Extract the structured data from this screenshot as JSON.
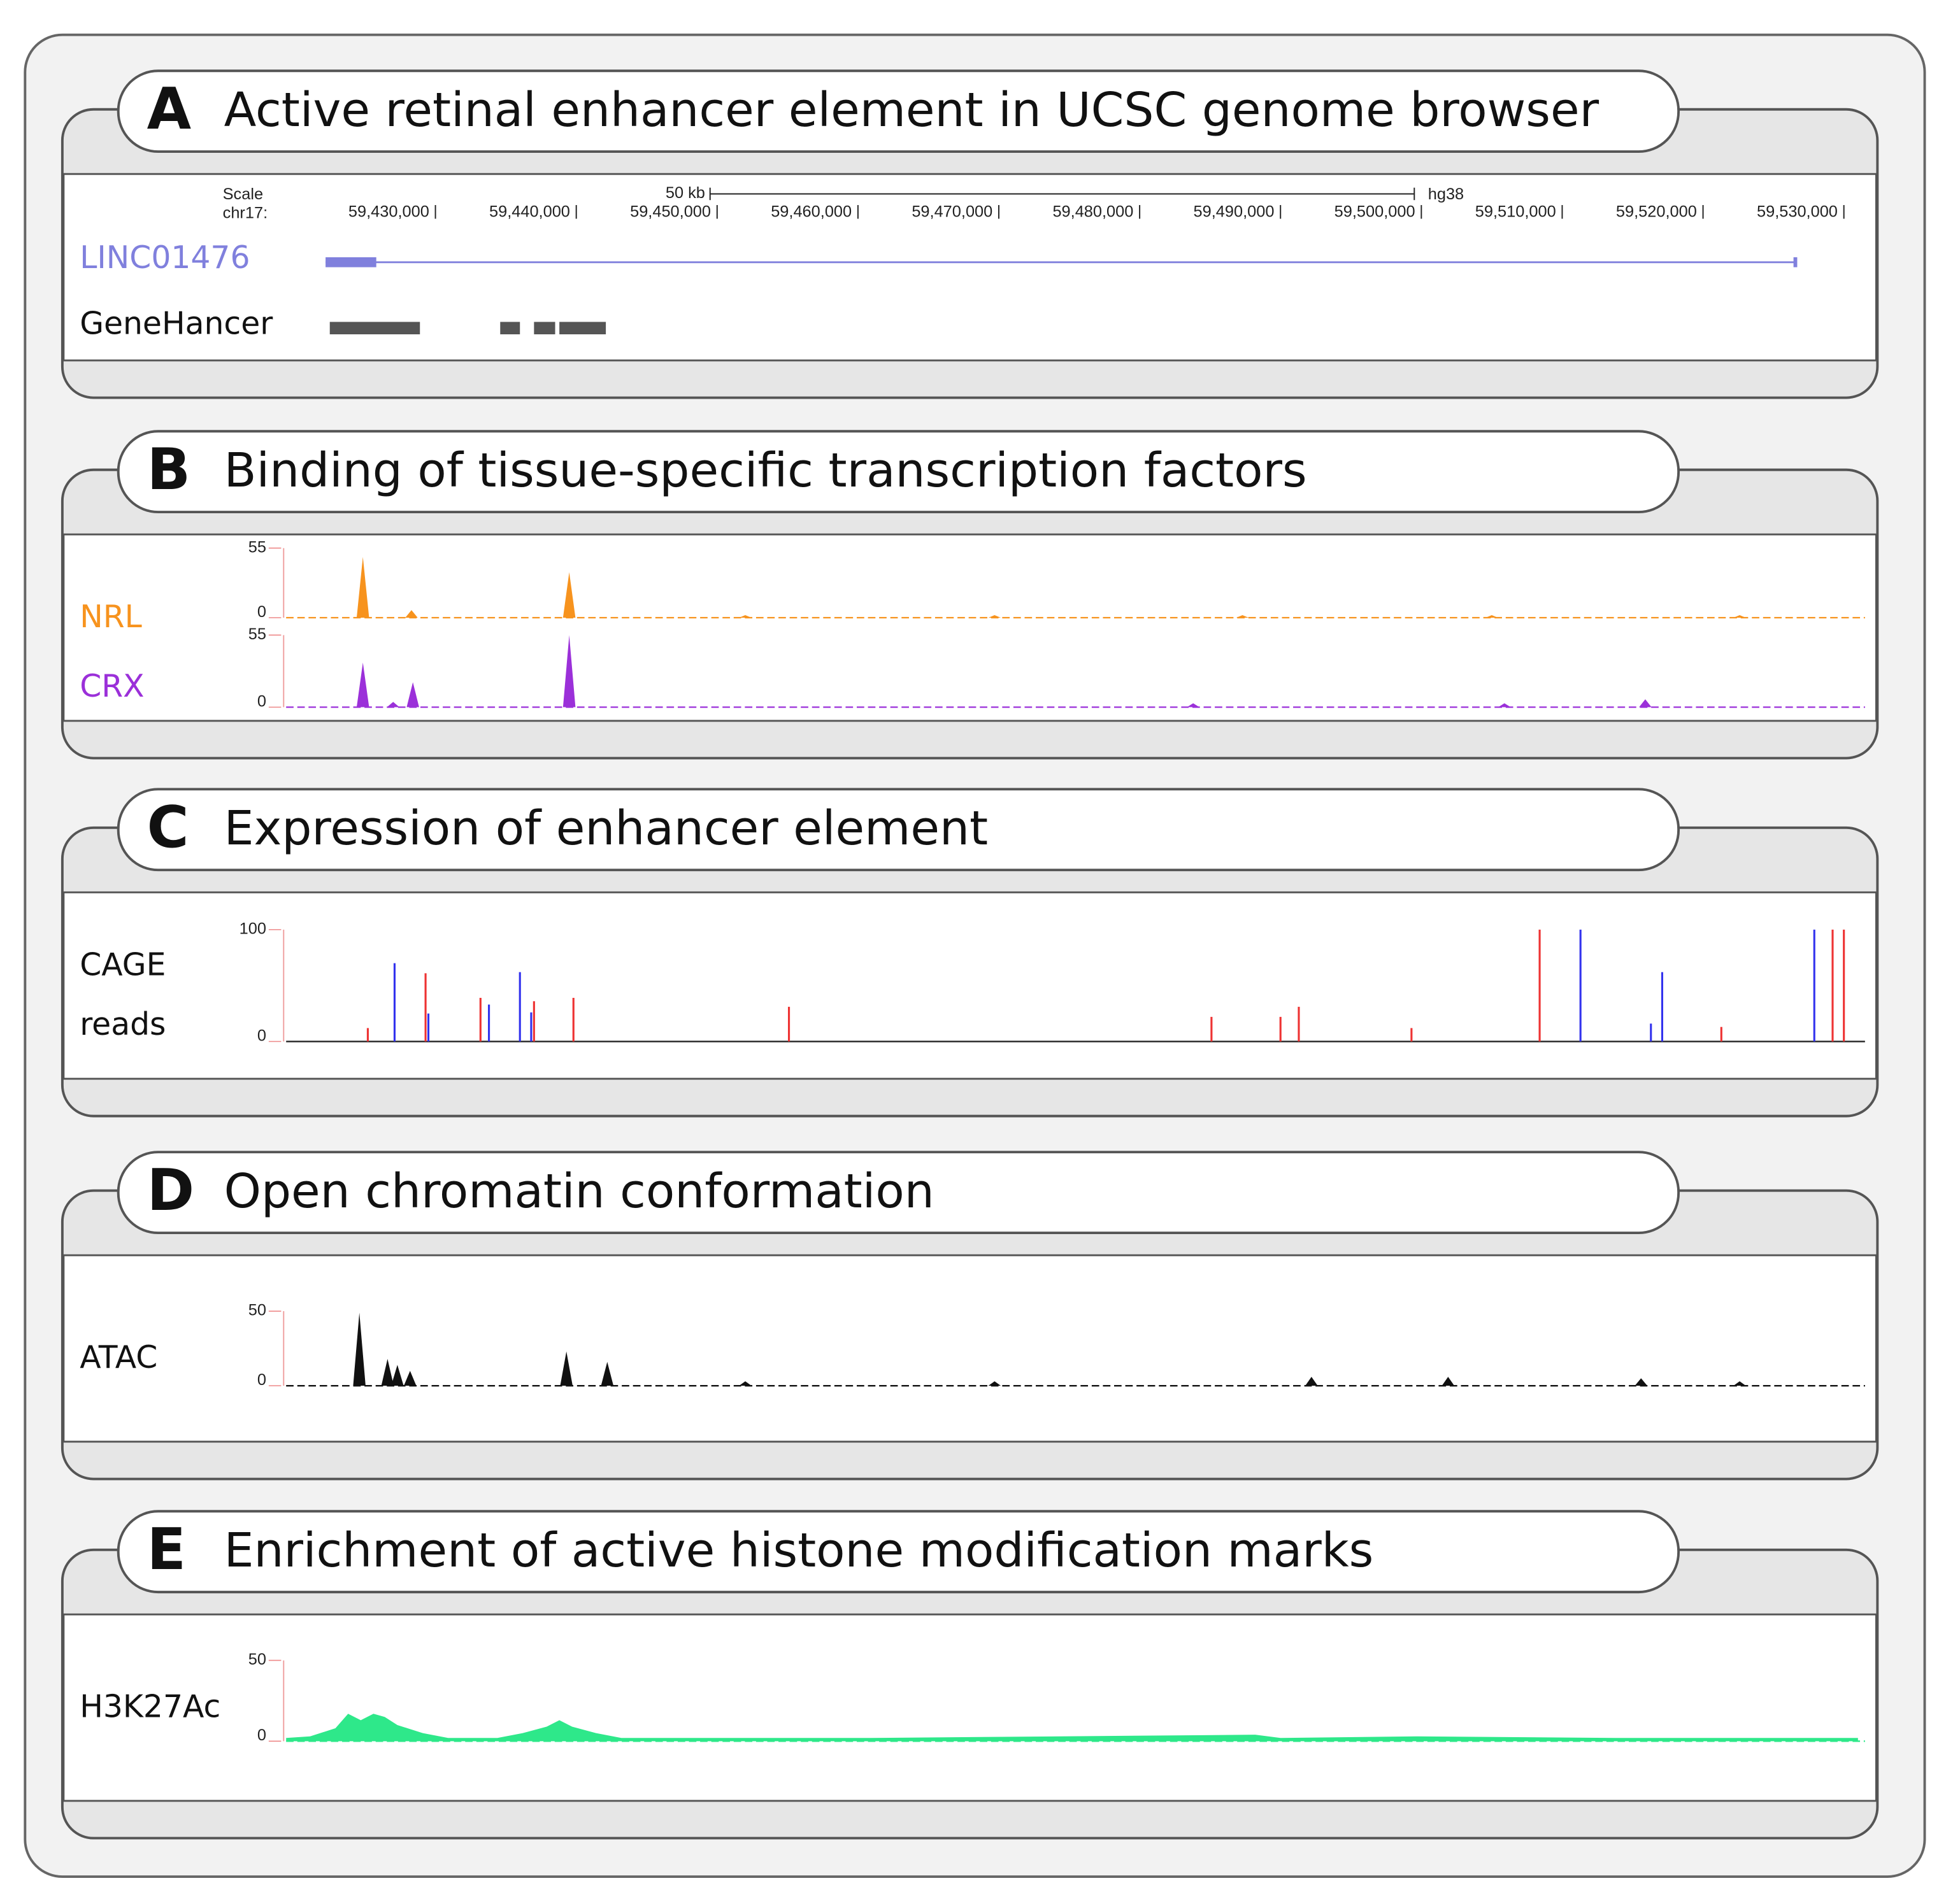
{
  "xlim": [
    59419400,
    59531500
  ],
  "panels": [
    {
      "letter": "A",
      "title": "Active retinal enhancer element in UCSC genome browser",
      "browser": {
        "scale_label": "Scale",
        "chrom_label": "chr17:",
        "assembly": "hg38",
        "scale_bar": {
          "label": "50 kb",
          "start": 59449500,
          "end": 59499500
        },
        "xticks": [
          {
            "value": 59430000,
            "label": "59,430,000"
          },
          {
            "value": 59440000,
            "label": "59,440,000"
          },
          {
            "value": 59450000,
            "label": "59,450,000"
          },
          {
            "value": 59460000,
            "label": "59,460,000"
          },
          {
            "value": 59470000,
            "label": "59,470,000"
          },
          {
            "value": 59480000,
            "label": "59,480,000"
          },
          {
            "value": 59490000,
            "label": "59,490,000"
          },
          {
            "value": 59500000,
            "label": "59,500,000"
          },
          {
            "value": 59510000,
            "label": "59,510,000"
          },
          {
            "value": 59520000,
            "label": "59,520,000"
          },
          {
            "value": 59530000,
            "label": "59,530,000"
          }
        ],
        "tracks": [
          {
            "name": "LINC01476",
            "type": "gene",
            "color": "#8080dd",
            "thick": [
              59422200,
              59425800
            ],
            "span": [
              59422200,
              59526600
            ]
          },
          {
            "name": "GeneHancer",
            "type": "blocks",
            "color": "#555555",
            "blocks": [
              [
                59422500,
                59428900
              ],
              [
                59434600,
                59436000
              ],
              [
                59437000,
                59438500
              ],
              [
                59438800,
                59442100
              ]
            ]
          }
        ]
      }
    },
    {
      "letter": "B",
      "title": "Binding of tissue-specific transcription factors",
      "tracks": [
        {
          "name": "NRL",
          "type": "spikes",
          "color": "#f7931e",
          "ylim": [
            0,
            55
          ],
          "yticks": [
            0,
            55
          ],
          "series": [
            {
              "color": "#f7931e",
              "x": [
                59424850,
                59428300,
                59439500,
                59452000,
                59469700,
                59487300,
                59505000,
                59522600
              ],
              "values": [
                48,
                6,
                36,
                2,
                2,
                2,
                2,
                2
              ]
            }
          ]
        },
        {
          "name": "CRX",
          "type": "spikes",
          "color": "#9b30d9",
          "ylim": [
            0,
            55
          ],
          "yticks": [
            0,
            55
          ],
          "series": [
            {
              "color": "#9b30d9",
              "x": [
                59424850,
                59427000,
                59428400,
                59439500,
                59483800,
                59505900,
                59515900
              ],
              "values": [
                34,
                4,
                19,
                55,
                3,
                3,
                6
              ]
            }
          ]
        }
      ]
    },
    {
      "letter": "C",
      "title": "Expression of enhancer element",
      "tracks": [
        {
          "name_lines": [
            "CAGE",
            "reads"
          ],
          "type": "bars",
          "color": "#222222",
          "ylim": [
            0,
            100
          ],
          "yticks": [
            0,
            100
          ],
          "series": [
            {
              "color": "#ee3333",
              "x": [
                59425200,
                59429300,
                59433200,
                59437000,
                59439800,
                59455100,
                59485100,
                59490000,
                59491300,
                59499300,
                59508400,
                59521300,
                59529200,
                59530000
              ],
              "values": [
                12,
                61,
                39,
                36,
                39,
                31,
                22,
                22,
                31,
                12,
                100,
                13,
                100,
                100
              ]
            },
            {
              "color": "#3333ee",
              "x": [
                59427100,
                59429500,
                59433800,
                59436000,
                59436800,
                59511300,
                59516300,
                59517100,
                59527900
              ],
              "values": [
                70,
                25,
                33,
                62,
                26,
                100,
                16,
                62,
                100
              ]
            }
          ]
        }
      ]
    },
    {
      "letter": "D",
      "title": "Open chromatin conformation",
      "tracks": [
        {
          "name": "ATAC",
          "type": "spikes",
          "color": "#111111",
          "ylim": [
            0,
            50
          ],
          "yticks": [
            0,
            50
          ],
          "series": [
            {
              "color": "#111111",
              "x": [
                59424600,
                59426600,
                59427300,
                59428200,
                59439300,
                59442200,
                59452000,
                59469700,
                59492200,
                59501900,
                59515600,
                59522600
              ],
              "values": [
                49,
                18,
                14,
                10,
                23,
                16,
                3,
                3,
                6,
                6,
                5,
                3
              ]
            }
          ]
        }
      ]
    },
    {
      "letter": "E",
      "title": "Enrichment of active histone modification marks",
      "tracks": [
        {
          "name": "H3K27Ac",
          "type": "area",
          "color": "#2ee88a",
          "ylim": [
            0,
            50
          ],
          "yticks": [
            0,
            50
          ],
          "series": [
            {
              "color": "#2ee88a",
              "x": [
                59419400,
                59421100,
                59422900,
                59423800,
                59424700,
                59425600,
                59426400,
                59427300,
                59429100,
                59430900,
                59434400,
                59436200,
                59437900,
                59438800,
                59439700,
                59441400,
                59443200,
                59460900,
                59488200,
                59490000,
                59499700,
                59513800,
                59531000
              ],
              "values": [
                2,
                3,
                8,
                17,
                13,
                17,
                15,
                10,
                5,
                2,
                2,
                5,
                9,
                13,
                9,
                5,
                2,
                2,
                4,
                2,
                3,
                2,
                2
              ]
            }
          ]
        }
      ]
    }
  ]
}
